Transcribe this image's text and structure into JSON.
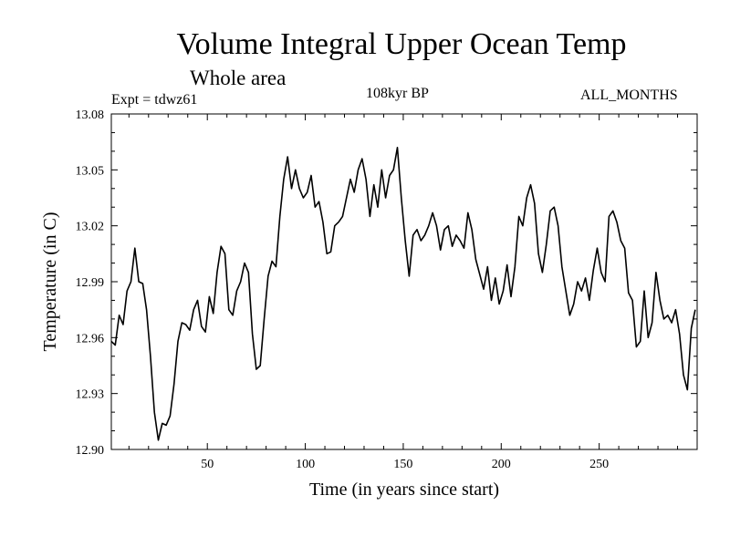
{
  "chart_data": {
    "type": "line",
    "title": "Volume Integral Upper Ocean Temp",
    "subtitle": "Whole area",
    "annotations": {
      "experiment": "Expt = tdwz61",
      "period": "108kyr BP",
      "months": "ALL_MONTHS"
    },
    "xlabel": "Time (in years since start)",
    "ylabel": "Temperature (in C)",
    "xlim": [
      1,
      300
    ],
    "ylim": [
      12.9,
      13.08
    ],
    "xticks": [
      50,
      100,
      150,
      200,
      250
    ],
    "xtick_labels": [
      "50",
      "100",
      "150",
      "200",
      "250"
    ],
    "yticks": [
      12.9,
      12.93,
      12.96,
      12.99,
      13.02,
      13.05,
      13.08
    ],
    "ytick_labels": [
      "12.90",
      "12.93",
      "12.96",
      "12.99",
      "13.02",
      "13.05",
      "13.08"
    ],
    "grid": false,
    "series": [
      {
        "name": "Temperature",
        "x": [
          1,
          3,
          5,
          7,
          9,
          11,
          13,
          15,
          17,
          19,
          21,
          23,
          25,
          27,
          29,
          31,
          33,
          35,
          37,
          39,
          41,
          43,
          45,
          47,
          49,
          51,
          53,
          55,
          57,
          59,
          61,
          63,
          65,
          67,
          69,
          71,
          73,
          75,
          77,
          79,
          81,
          83,
          85,
          87,
          89,
          91,
          93,
          95,
          97,
          99,
          101,
          103,
          105,
          107,
          109,
          111,
          113,
          115,
          117,
          119,
          121,
          123,
          125,
          127,
          129,
          131,
          133,
          135,
          137,
          139,
          141,
          143,
          145,
          147,
          149,
          151,
          153,
          155,
          157,
          159,
          161,
          163,
          165,
          167,
          169,
          171,
          173,
          175,
          177,
          179,
          181,
          183,
          185,
          187,
          189,
          191,
          193,
          195,
          197,
          199,
          201,
          203,
          205,
          207,
          209,
          211,
          213,
          215,
          217,
          219,
          221,
          223,
          225,
          227,
          229,
          231,
          233,
          235,
          237,
          239,
          241,
          243,
          245,
          247,
          249,
          251,
          253,
          255,
          257,
          259,
          261,
          263,
          265,
          267,
          269,
          271,
          273,
          275,
          277,
          279,
          281,
          283,
          285,
          287,
          289,
          291,
          293,
          295,
          297,
          299
        ],
        "values": [
          12.958,
          12.956,
          12.972,
          12.967,
          12.985,
          12.99,
          13.008,
          12.99,
          12.989,
          12.975,
          12.95,
          12.92,
          12.905,
          12.914,
          12.913,
          12.918,
          12.935,
          12.958,
          12.968,
          12.967,
          12.964,
          12.975,
          12.98,
          12.966,
          12.963,
          12.982,
          12.973,
          12.995,
          13.009,
          13.005,
          12.975,
          12.972,
          12.985,
          12.99,
          13.0,
          12.995,
          12.962,
          12.943,
          12.945,
          12.97,
          12.993,
          13.001,
          12.998,
          13.025,
          13.045,
          13.057,
          13.04,
          13.05,
          13.04,
          13.035,
          13.038,
          13.047,
          13.03,
          13.033,
          13.022,
          13.005,
          13.006,
          13.02,
          13.022,
          13.025,
          13.035,
          13.045,
          13.038,
          13.05,
          13.056,
          13.045,
          13.025,
          13.042,
          13.03,
          13.05,
          13.035,
          13.047,
          13.05,
          13.062,
          13.035,
          13.012,
          12.993,
          13.015,
          13.018,
          13.012,
          13.015,
          13.02,
          13.027,
          13.02,
          13.007,
          13.018,
          13.02,
          13.009,
          13.015,
          13.012,
          13.008,
          13.027,
          13.018,
          13.002,
          12.994,
          12.986,
          12.998,
          12.98,
          12.992,
          12.978,
          12.985,
          12.999,
          12.982,
          12.998,
          13.025,
          13.02,
          13.035,
          13.042,
          13.032,
          13.005,
          12.995,
          13.01,
          13.028,
          13.03,
          13.02,
          12.998,
          12.985,
          12.972,
          12.978,
          12.99,
          12.985,
          12.992,
          12.98,
          12.996,
          13.008,
          12.995,
          12.99,
          13.025,
          13.028,
          13.022,
          13.012,
          13.008,
          12.984,
          12.98,
          12.955,
          12.958,
          12.985,
          12.96,
          12.968,
          12.995,
          12.98,
          12.97,
          12.972,
          12.968,
          12.975,
          12.962,
          12.94,
          12.932,
          12.965,
          12.975
        ]
      }
    ]
  }
}
